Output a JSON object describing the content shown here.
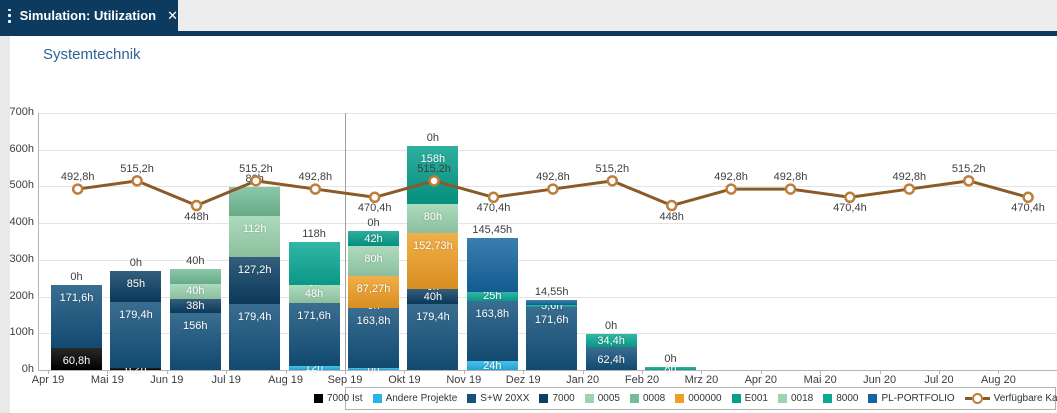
{
  "header": {
    "tab_title": "Simulation: Utilization",
    "close_label": "✕"
  },
  "page_title": "Systemtechnik",
  "chart_data": {
    "type": "bar",
    "subtype": "stacked-bars-with-capacity-line",
    "title": "Systemtechnik",
    "xlabel": "",
    "ylabel": "",
    "ylim": [
      0,
      700
    ],
    "y_tick_labels": [
      "0h",
      "100h",
      "200h",
      "300h",
      "400h",
      "500h",
      "600h",
      "700h"
    ],
    "grid": true,
    "legend_position": "bottom",
    "categories": [
      "Apr 19",
      "Mai 19",
      "Jun 19",
      "Jul 19",
      "Aug 19",
      "Sep 19",
      "Okt 19",
      "Nov 19",
      "Dez 19",
      "Jan 20",
      "Feb 20",
      "Mrz 20",
      "Apr 20",
      "Mai 20",
      "Jun 20",
      "Jul 20",
      "Aug 20"
    ],
    "palette": {
      "black": "#000000",
      "cyan": "#29b4e8",
      "navy1": "#14527c",
      "navy2": "#0d3f63",
      "greenL": "#9cd4b0",
      "greenM": "#74bd98",
      "orange": "#f09f25",
      "tealE": "#069f8c",
      "teal8": "#0ca895",
      "blue3": "#1566a0",
      "line": "#8a5a28",
      "line_marker": "#bd7e3c"
    },
    "legend": [
      {
        "label": "7000 Ist",
        "color": "black",
        "type": "box"
      },
      {
        "label": "Andere Projekte",
        "color": "cyan",
        "type": "box"
      },
      {
        "label": "S+W 20XX",
        "color": "navy1",
        "type": "box"
      },
      {
        "label": "7000",
        "color": "navy2",
        "type": "box"
      },
      {
        "label": "0005",
        "color": "greenL",
        "type": "box"
      },
      {
        "label": "0008",
        "color": "greenM",
        "type": "box"
      },
      {
        "label": "000000",
        "color": "orange",
        "type": "box"
      },
      {
        "label": "E001",
        "color": "tealE",
        "type": "box"
      },
      {
        "label": "0018",
        "color": "greenL",
        "type": "box"
      },
      {
        "label": "8000",
        "color": "teal8",
        "type": "box"
      },
      {
        "label": "PL-PORTFOLIO",
        "color": "blue3",
        "type": "box"
      },
      {
        "label": "Verfügbare Kapazität",
        "color": "line",
        "type": "line"
      }
    ],
    "bars": [
      {
        "month": "Apr 19",
        "top_label": "0h",
        "segments": [
          {
            "v": 60.8,
            "label": "60,8h",
            "c": "black"
          },
          {
            "v": 171.6,
            "label": "171,6h",
            "c": "navy1"
          }
        ]
      },
      {
        "month": "Mai 19",
        "top_label": "0h",
        "segments": [
          {
            "v": 6.2,
            "label": "6,2h",
            "c": "black"
          },
          {
            "v": 179.4,
            "label": "179,4h",
            "c": "navy1"
          },
          {
            "v": 85,
            "label": "85h",
            "c": "navy2"
          }
        ]
      },
      {
        "month": "Jun 19",
        "top_label": "40h",
        "segments": [
          {
            "v": 156,
            "label": "156h",
            "c": "navy1"
          },
          {
            "v": 38,
            "label": "38h",
            "c": "navy2"
          },
          {
            "v": 40,
            "label": "40h",
            "c": "greenL"
          },
          {
            "v": 40,
            "label": null,
            "c": "greenM"
          }
        ]
      },
      {
        "month": "Jul 19",
        "top_label": "80h",
        "segments": [
          {
            "v": 179.4,
            "label": "179,4h",
            "c": "navy1"
          },
          {
            "v": 127.2,
            "label": "127,2h",
            "c": "navy2"
          },
          {
            "v": 112,
            "label": "112h",
            "c": "greenL"
          },
          {
            "v": 80,
            "label": null,
            "c": "greenM"
          }
        ]
      },
      {
        "month": "Aug 19",
        "top_label": "118h",
        "segments": [
          {
            "v": 12,
            "label": "12h",
            "c": "cyan"
          },
          {
            "v": 171.6,
            "label": "171,6h",
            "c": "navy1"
          },
          {
            "v": 48,
            "label": "48h",
            "c": "greenL"
          },
          {
            "v": 0,
            "label": "0h",
            "c": "orange"
          },
          {
            "v": 118,
            "label": null,
            "c": "teal8"
          }
        ]
      },
      {
        "month": "Sep 19",
        "top_label": "0h",
        "segments": [
          {
            "v": 6,
            "label": "6h",
            "c": "cyan"
          },
          {
            "v": 163.8,
            "label": "163,8h",
            "c": "navy1"
          },
          {
            "v": 0,
            "label": "0h",
            "c": "navy2"
          },
          {
            "v": 87.27,
            "label": "87,27h",
            "c": "orange"
          },
          {
            "v": 80,
            "label": "80h",
            "c": "greenL"
          },
          {
            "v": 42,
            "label": "42h",
            "c": "tealE"
          }
        ]
      },
      {
        "month": "Okt 19",
        "top_label": "0h",
        "segments": [
          {
            "v": 179.4,
            "label": "179,4h",
            "c": "navy1"
          },
          {
            "v": 40,
            "label": "40h",
            "c": "navy2"
          },
          {
            "v": 0,
            "label": "0h",
            "c": "greenL"
          },
          {
            "v": 152.73,
            "label": "152,73h",
            "c": "orange"
          },
          {
            "v": 80,
            "label": "80h",
            "c": "greenL"
          },
          {
            "v": 158,
            "label": "158h",
            "c": "tealE"
          }
        ]
      },
      {
        "month": "Nov 19",
        "top_label": "145,45h",
        "segments": [
          {
            "v": 24,
            "label": "24h",
            "c": "cyan"
          },
          {
            "v": 163.8,
            "label": "163,8h",
            "c": "navy1"
          },
          {
            "v": 25,
            "label": "25h",
            "c": "teal8"
          },
          {
            "v": 145.45,
            "label": null,
            "c": "blue3"
          }
        ]
      },
      {
        "month": "Dez 19",
        "top_label": "14,55h",
        "segments": [
          {
            "v": 171.6,
            "label": "171,6h",
            "c": "navy1"
          },
          {
            "v": 5.6,
            "label": "5,6h",
            "c": "teal8"
          },
          {
            "v": 14.55,
            "label": null,
            "c": "blue3"
          }
        ]
      },
      {
        "month": "Jan 20",
        "top_label": "0h",
        "segments": [
          {
            "v": 62.4,
            "label": "62,4h",
            "c": "navy1"
          },
          {
            "v": 34.4,
            "label": "34,4h",
            "c": "teal8"
          }
        ]
      },
      {
        "month": "Feb 20",
        "top_label": "0h",
        "segments": [
          {
            "v": 8,
            "label": "8h",
            "c": "teal8"
          }
        ]
      },
      {
        "month": "Mrz 20",
        "top_label": null,
        "segments": []
      },
      {
        "month": "Apr 20",
        "top_label": null,
        "segments": []
      },
      {
        "month": "Mai 20",
        "top_label": null,
        "segments": []
      },
      {
        "month": "Jun 20",
        "top_label": null,
        "segments": []
      },
      {
        "month": "Jul 20",
        "top_label": null,
        "segments": []
      },
      {
        "month": "Aug 20",
        "top_label": null,
        "segments": []
      }
    ],
    "capacity_line": {
      "name": "Verfügbare Kapazität",
      "values": [
        492.8,
        515.2,
        448,
        515.2,
        492.8,
        470.4,
        515.2,
        470.4,
        492.8,
        515.2,
        448,
        492.8,
        492.8,
        470.4,
        492.8,
        515.2,
        470.4
      ],
      "labels": [
        "492,8h",
        "515,2h",
        "448h",
        "515,2h",
        "492,8h",
        "470,4h",
        "515,2h",
        "470,4h",
        "492,8h",
        "515,2h",
        "448h",
        "492,8h",
        "492,8h",
        "470,4h",
        "492,8h",
        "515,2h",
        "470,4h"
      ],
      "label_pos": [
        "above",
        "above",
        "below",
        "above",
        "above",
        "below",
        "above",
        "below",
        "above",
        "above",
        "below",
        "above",
        "above",
        "below",
        "above",
        "above",
        "below"
      ]
    },
    "today_marker": {
      "month": "Sep 19"
    }
  }
}
